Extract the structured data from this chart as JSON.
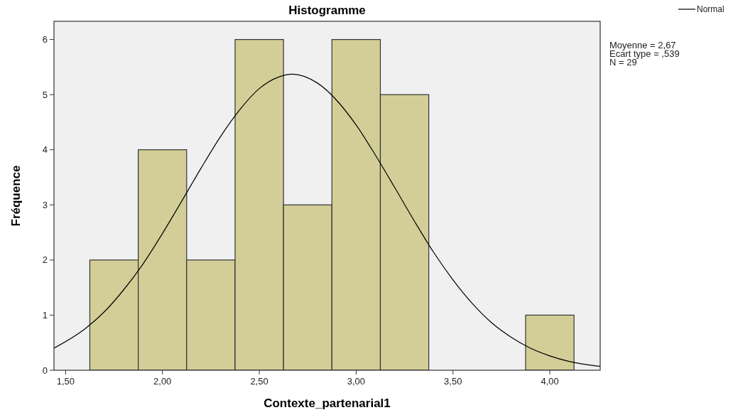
{
  "chart_data": {
    "type": "histogram",
    "title": "Histogramme",
    "xlabel": "Contexte_partenarial1",
    "ylabel": "Fréquence",
    "annotations": [
      "Moyenne = 2,67",
      "Ecart type = ,539",
      "N = 29"
    ],
    "xlim": [
      1.44,
      4.26
    ],
    "xticks": [
      {
        "value": 1.5,
        "label": "1,50"
      },
      {
        "value": 2,
        "label": "2,00"
      },
      {
        "value": 2.5,
        "label": "2,50"
      },
      {
        "value": 3,
        "label": "3,00"
      },
      {
        "value": 3.5,
        "label": "3,50"
      },
      {
        "value": 4,
        "label": "4,00"
      }
    ],
    "ylim": [
      0,
      6.33
    ],
    "yticks": [
      0,
      1,
      2,
      3,
      4,
      5,
      6
    ],
    "legend": "top right",
    "series": [
      {
        "color": "#d3ce97",
        "bins": [
          1.625,
          1.875,
          2.125,
          2.375,
          2.625,
          2.875,
          3.125,
          3.375,
          3.625,
          3.875,
          4.125
        ],
        "values": [
          2,
          4,
          2,
          6,
          3,
          6,
          5,
          0,
          0,
          1
        ]
      },
      {
        "type": "line",
        "name": "Normal",
        "color": "#000000",
        "x": [
          1.44,
          1.6,
          1.7,
          1.8,
          1.9,
          2.0,
          2.1,
          2.2,
          2.3,
          2.4,
          2.5,
          2.6,
          2.67,
          2.8,
          3.0,
          3.1,
          3.2,
          3.3,
          3.4,
          3.5,
          3.6,
          3.7,
          3.8,
          3.9,
          4.0,
          4.1,
          4.26
        ],
        "values": [
          0.4,
          0.75,
          1.06,
          1.46,
          1.93,
          2.48,
          3.07,
          3.67,
          4.24,
          4.73,
          5.11,
          5.32,
          5.37,
          5.21,
          4.45,
          3.9,
          3.31,
          2.71,
          2.14,
          1.64,
          1.21,
          0.86,
          0.6,
          0.4,
          0.26,
          0.16,
          0.07
        ]
      }
    ]
  }
}
